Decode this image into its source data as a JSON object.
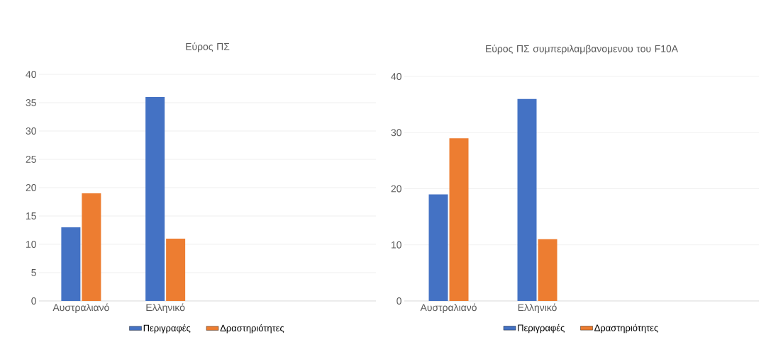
{
  "chart_data": [
    {
      "type": "bar",
      "title": "Εύρος ΠΣ",
      "categories": [
        "Αυστραλιανό",
        "Ελληνικό",
        null,
        null
      ],
      "series": [
        {
          "name": "Περιγραφές",
          "color": "#4472c4",
          "values": [
            13,
            36,
            null,
            null
          ]
        },
        {
          "name": "Δραστηριότητες",
          "color": "#ed7d31",
          "values": [
            19,
            11,
            null,
            null
          ]
        }
      ],
      "ylim": [
        0,
        40
      ],
      "yticks": [
        0,
        5,
        10,
        15,
        20,
        25,
        30,
        35,
        40
      ],
      "grid": "y",
      "legend": "bottom"
    },
    {
      "type": "bar",
      "title": "Εύρος ΠΣ συμπεριλαμβανομενου του F10A",
      "categories": [
        "Αυστραλιανό",
        "Ελληνικό",
        null,
        null
      ],
      "series": [
        {
          "name": "Περιγραφές",
          "color": "#4472c4",
          "values": [
            19,
            36,
            null,
            null
          ]
        },
        {
          "name": "Δραστηριότητες",
          "color": "#ed7d31",
          "values": [
            29,
            11,
            null,
            null
          ]
        }
      ],
      "ylim": [
        0,
        40
      ],
      "yticks": [
        0,
        10,
        20,
        30,
        40
      ],
      "grid": "y",
      "legend": "bottom"
    }
  ]
}
